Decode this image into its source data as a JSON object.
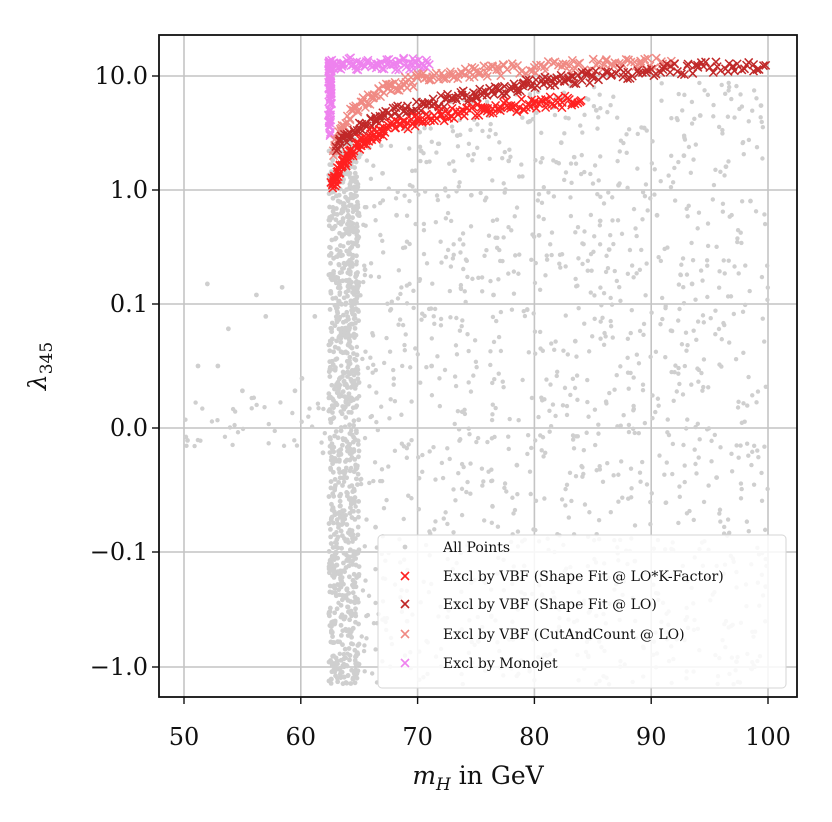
{
  "chart_data": {
    "type": "scatter",
    "title": "",
    "xlabel": "m_H in GeV",
    "xlabel_var": "m",
    "xlabel_sub": "H",
    "xlabel_unit": " in GeV",
    "ylabel": "λ345",
    "ylabel_var": "λ",
    "ylabel_sub": "345",
    "xlim": [
      48,
      102.5
    ],
    "y_scale": "symlog",
    "y_linthresh": 0.1,
    "ylim": [
      -1.2,
      15
    ],
    "grid": true,
    "x_ticks": [
      50,
      60,
      70,
      80,
      90,
      100
    ],
    "x_tick_labels": [
      "50",
      "60",
      "70",
      "80",
      "90",
      "100"
    ],
    "y_ticks": [
      -1.0,
      -0.1,
      0.0,
      0.1,
      1.0,
      10.0
    ],
    "y_tick_labels": [
      "−1.0",
      "−0.1",
      "0.0",
      "0.1",
      "1.0",
      "10.0"
    ],
    "legend_position": "lower right",
    "series": [
      {
        "name": "All Points",
        "marker": "dot",
        "color": "#cfcfcf",
        "label": "All Points",
        "points": [
          [
            50.3,
            -0.01
          ],
          [
            51.2,
            0.05
          ],
          [
            52.0,
            0.15
          ],
          [
            52.9,
            0.05
          ],
          [
            53.8,
            0.08
          ],
          [
            55.0,
            0.03
          ],
          [
            56.2,
            0.12
          ],
          [
            57.0,
            0.09
          ],
          [
            58.4,
            0.14
          ],
          [
            59.5,
            0.03
          ],
          [
            60.1,
            0.04
          ],
          [
            61.2,
            0.09
          ],
          [
            61.9,
            -0.02
          ],
          [
            62.6,
            -0.9
          ],
          [
            62.7,
            -0.5
          ],
          [
            62.8,
            -0.2
          ],
          [
            62.9,
            -0.05
          ],
          [
            63.0,
            0.02
          ],
          [
            63.1,
            0.3
          ],
          [
            63.2,
            0.8
          ],
          [
            63.4,
            1.5
          ],
          [
            63.6,
            2.5
          ],
          [
            63.8,
            -0.7
          ],
          [
            64.0,
            -0.3
          ],
          [
            64.2,
            0.5
          ],
          [
            64.5,
            1.2
          ],
          [
            64.8,
            -0.95
          ],
          [
            65.5,
            0.2
          ],
          [
            66.4,
            -0.08
          ],
          [
            67.0,
            1.4
          ],
          [
            68.2,
            0.6
          ],
          [
            69.1,
            -0.4
          ],
          [
            70.3,
            2.2
          ],
          [
            71.2,
            0.05
          ],
          [
            72.5,
            -0.15
          ],
          [
            73.4,
            3.0
          ],
          [
            74.6,
            0.9
          ],
          [
            75.2,
            -0.6
          ],
          [
            76.5,
            0.12
          ],
          [
            77.8,
            1.8
          ],
          [
            78.5,
            -0.03
          ],
          [
            79.6,
            4.0
          ],
          [
            80.4,
            0.4
          ],
          [
            81.7,
            -0.25
          ],
          [
            82.3,
            2.6
          ],
          [
            83.5,
            0.07
          ],
          [
            84.6,
            -0.8
          ],
          [
            85.3,
            5.0
          ],
          [
            86.4,
            0.3
          ],
          [
            87.2,
            1.1
          ],
          [
            88.6,
            -0.12
          ],
          [
            89.4,
            3.5
          ],
          [
            90.5,
            0.6
          ],
          [
            91.3,
            -0.5
          ],
          [
            92.8,
            2.0
          ],
          [
            93.5,
            0.15
          ],
          [
            94.2,
            4.5
          ],
          [
            95.6,
            -0.04
          ],
          [
            96.4,
            1.6
          ],
          [
            97.3,
            -0.9
          ],
          [
            98.5,
            0.8
          ],
          [
            99.4,
            5.5
          ],
          [
            99.8,
            -0.2
          ]
        ]
      },
      {
        "name": "Excl by VBF (Shape Fit @ LO*K-Factor)",
        "marker": "x",
        "color": "#ff2020",
        "label": "Excl by VBF (Shape Fit @ LO*K-Factor)",
        "points": [
          [
            62.7,
            1.1
          ],
          [
            63.0,
            1.3
          ],
          [
            63.5,
            1.6
          ],
          [
            64.0,
            2.0
          ],
          [
            65.0,
            2.5
          ],
          [
            66.0,
            2.9
          ],
          [
            67.0,
            3.3
          ],
          [
            68.5,
            3.7
          ],
          [
            70.0,
            4.1
          ],
          [
            72.0,
            4.5
          ],
          [
            74.0,
            4.9
          ],
          [
            76.0,
            5.2
          ],
          [
            78.0,
            5.5
          ],
          [
            80.0,
            5.7
          ],
          [
            82.0,
            5.9
          ],
          [
            84.0,
            6.1
          ]
        ]
      },
      {
        "name": "Excl by VBF (Shape Fit @ LO)",
        "marker": "x",
        "color": "#c02828",
        "label": "Excl by VBF (Shape Fit @ LO)",
        "points": [
          [
            63.0,
            2.4
          ],
          [
            64.0,
            3.0
          ],
          [
            65.5,
            3.7
          ],
          [
            67.0,
            4.4
          ],
          [
            69.0,
            5.1
          ],
          [
            71.0,
            5.7
          ],
          [
            73.0,
            6.3
          ],
          [
            75.0,
            6.9
          ],
          [
            77.0,
            7.5
          ],
          [
            79.0,
            8.2
          ],
          [
            81.0,
            8.8
          ],
          [
            83.0,
            9.4
          ],
          [
            85.0,
            10.0
          ],
          [
            88.0,
            10.8
          ],
          [
            91.0,
            11.4
          ],
          [
            94.0,
            11.9
          ],
          [
            97.0,
            12.2
          ],
          [
            99.8,
            12.4
          ]
        ]
      },
      {
        "name": "Excl by VBF (CutAndCount @ LO)",
        "marker": "x",
        "color": "#f08a84",
        "label": "Excl by VBF (CutAndCount @ LO)",
        "points": [
          [
            62.8,
            2.0
          ],
          [
            63.5,
            3.5
          ],
          [
            64.5,
            5.0
          ],
          [
            66.0,
            6.5
          ],
          [
            67.5,
            7.8
          ],
          [
            69.0,
            8.8
          ],
          [
            71.0,
            9.6
          ],
          [
            73.0,
            10.3
          ],
          [
            75.0,
            10.9
          ],
          [
            77.0,
            11.4
          ],
          [
            80.0,
            11.9
          ],
          [
            83.0,
            12.3
          ],
          [
            86.0,
            12.6
          ],
          [
            89.0,
            12.8
          ],
          [
            92.0,
            12.9
          ]
        ]
      },
      {
        "name": "Excl by Monojet",
        "marker": "x",
        "color": "#ee82ee",
        "label": "Excl by Monojet",
        "points": [
          [
            62.5,
            3.0
          ],
          [
            62.5,
            5.0
          ],
          [
            62.5,
            7.0
          ],
          [
            62.5,
            9.0
          ],
          [
            62.5,
            11.0
          ],
          [
            62.5,
            13.0
          ],
          [
            63.5,
            12.8
          ],
          [
            65.0,
            12.9
          ],
          [
            66.5,
            12.6
          ],
          [
            68.0,
            12.7
          ],
          [
            69.5,
            12.8
          ],
          [
            71.0,
            12.6
          ]
        ]
      }
    ]
  }
}
